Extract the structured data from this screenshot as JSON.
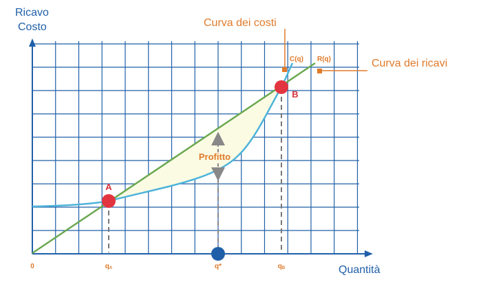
{
  "axes": {
    "y_label_line1": "Ricavo",
    "y_label_line2": "Costo",
    "x_label": "Quantità",
    "origin_label": "0"
  },
  "ticks": {
    "qA": "qA",
    "qstar": "q*",
    "qB": "qB"
  },
  "points": {
    "A": "A",
    "B": "B"
  },
  "curves": {
    "cost_symbol": "C(q)",
    "revenue_symbol": "R(q)",
    "cost_title": "Curva dei costi",
    "revenue_title": "Curva dei ricavi"
  },
  "region": {
    "profit_label": "Profitto"
  },
  "colors": {
    "grid": "#1f5fa8",
    "revenue_line": "#6aa84f",
    "cost_curve": "#4db3d9",
    "profit_fill": "#fbfbe4",
    "intersection_points": "#e2353f",
    "optimum_point": "#1f5fa8",
    "callouts": "#e07a2a",
    "dashed": "#777777"
  }
}
